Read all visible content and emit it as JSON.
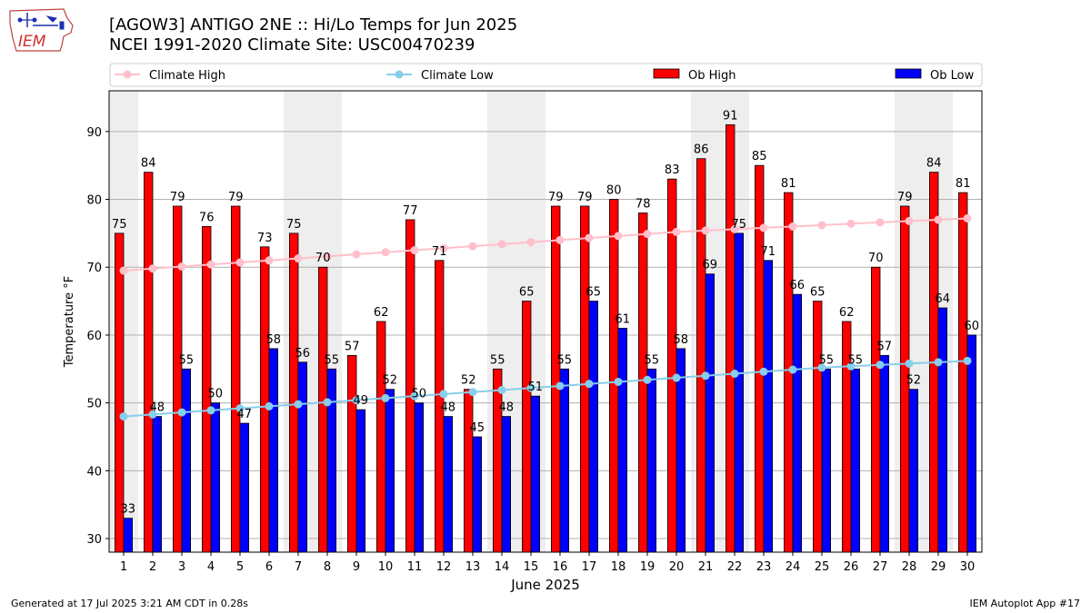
{
  "header": {
    "title_line1": "[AGOW3] ANTIGO 2NE :: Hi/Lo Temps for Jun 2025",
    "title_line2": "NCEI 1991-2020 Climate Site: USC00470239",
    "logo_text": "IEM"
  },
  "footer": {
    "left": "Generated at 17 Jul 2025 3:21 AM CDT in 0.28s",
    "right": "IEM Autoplot App #17"
  },
  "colors": {
    "ob_high": "#ff0000",
    "ob_low": "#0000ff",
    "climate_high": "#ffc0cb",
    "climate_low": "#87ceeb",
    "weekend_shade": "#eeeeee",
    "grid": "#b0b0b0"
  },
  "chart_data": {
    "type": "bar",
    "xlabel": "June 2025",
    "ylabel": "Temperature °F",
    "ylim": [
      28,
      96
    ],
    "yticks": [
      30,
      40,
      50,
      60,
      70,
      80,
      90
    ],
    "grid": "horizontal",
    "legend_position": "top",
    "categories": [
      1,
      2,
      3,
      4,
      5,
      6,
      7,
      8,
      9,
      10,
      11,
      12,
      13,
      14,
      15,
      16,
      17,
      18,
      19,
      20,
      21,
      22,
      23,
      24,
      25,
      26,
      27,
      28,
      29,
      30
    ],
    "shaded_days": [
      1,
      7,
      8,
      14,
      15,
      21,
      22,
      28,
      29
    ],
    "series": [
      {
        "name": "Climate High",
        "kind": "line",
        "color": "#ffc0cb",
        "values": [
          69.5,
          69.8,
          70.1,
          70.4,
          70.7,
          71.0,
          71.3,
          71.6,
          71.9,
          72.2,
          72.5,
          72.8,
          73.1,
          73.4,
          73.7,
          74.0,
          74.3,
          74.6,
          74.9,
          75.2,
          75.4,
          75.6,
          75.8,
          76.0,
          76.2,
          76.4,
          76.6,
          76.8,
          77.0,
          77.2
        ]
      },
      {
        "name": "Climate Low",
        "kind": "line",
        "color": "#87ceeb",
        "values": [
          48.0,
          48.3,
          48.6,
          48.9,
          49.2,
          49.5,
          49.8,
          50.1,
          50.4,
          50.7,
          51.0,
          51.3,
          51.6,
          51.9,
          52.2,
          52.5,
          52.8,
          53.1,
          53.4,
          53.7,
          54.0,
          54.3,
          54.6,
          54.9,
          55.2,
          55.4,
          55.6,
          55.8,
          56.0,
          56.2
        ]
      },
      {
        "name": "Ob High",
        "kind": "bar",
        "color": "#ff0000",
        "values": [
          75,
          84,
          79,
          76,
          79,
          73,
          75,
          70,
          57,
          62,
          77,
          71,
          52,
          55,
          65,
          79,
          79,
          80,
          78,
          83,
          86,
          91,
          85,
          81,
          65,
          62,
          70,
          79,
          84,
          81
        ]
      },
      {
        "name": "Ob Low",
        "kind": "bar",
        "color": "#0000ff",
        "values": [
          33,
          48,
          55,
          50,
          47,
          58,
          56,
          55,
          49,
          52,
          50,
          48,
          45,
          48,
          51,
          55,
          65,
          61,
          55,
          58,
          69,
          75,
          71,
          66,
          55,
          55,
          57,
          52,
          64,
          60
        ]
      }
    ]
  }
}
